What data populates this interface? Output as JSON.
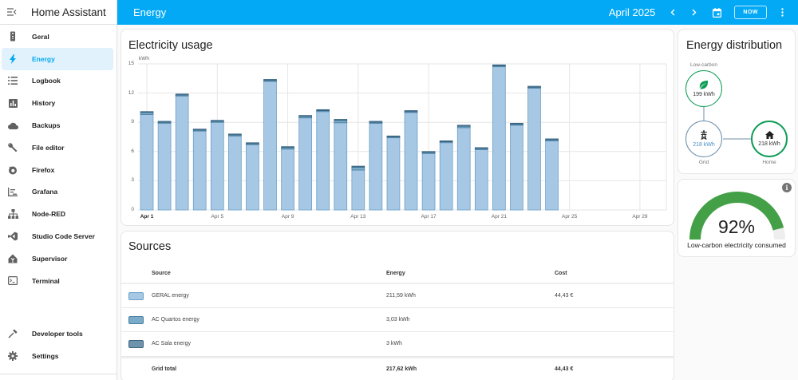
{
  "sidebar": {
    "title": "Home Assistant",
    "menu_icon": "menu-open-icon",
    "items": [
      {
        "label": "Geral",
        "icon": "remote-icon",
        "active": false
      },
      {
        "label": "Energy",
        "icon": "lightning-bolt-icon",
        "active": true
      },
      {
        "label": "Logbook",
        "icon": "logbook-list-icon",
        "active": false
      },
      {
        "label": "History",
        "icon": "chart-box-icon",
        "active": false
      },
      {
        "label": "Backups",
        "icon": "cloud-icon",
        "active": false
      },
      {
        "label": "File editor",
        "icon": "wrench-icon",
        "active": false
      },
      {
        "label": "Firefox",
        "icon": "firefox-icon",
        "active": false
      },
      {
        "label": "Grafana",
        "icon": "grafana-chart-icon",
        "active": false
      },
      {
        "label": "Node-RED",
        "icon": "sitemap-icon",
        "active": false
      },
      {
        "label": "Studio Code Server",
        "icon": "vscode-icon",
        "active": false
      },
      {
        "label": "Supervisor",
        "icon": "home-assistant-icon",
        "active": false
      },
      {
        "label": "Terminal",
        "icon": "console-icon",
        "active": false
      }
    ],
    "bottom_items": [
      {
        "label": "Developer tools",
        "icon": "hammer-icon"
      },
      {
        "label": "Settings",
        "icon": "cog-icon"
      }
    ]
  },
  "topbar": {
    "title": "Energy",
    "period": "April 2025",
    "now_label": "NOW",
    "background": "#03a9f4"
  },
  "usage": {
    "title": "Electricity usage",
    "unit": "kWh"
  },
  "chart_data": {
    "type": "bar",
    "title": "Electricity usage",
    "xlabel": "",
    "ylabel": "kWh",
    "ylim": [
      0,
      15
    ],
    "yticks": [
      0,
      3,
      6,
      9,
      12,
      15
    ],
    "grid": true,
    "stacked": true,
    "x_tick_labels": [
      "Apr 1",
      "Apr 5",
      "Apr 9",
      "Apr 13",
      "Apr 17",
      "Apr 21",
      "Apr 25",
      "Apr 29"
    ],
    "categories": [
      "Apr 1",
      "Apr 2",
      "Apr 3",
      "Apr 4",
      "Apr 5",
      "Apr 6",
      "Apr 7",
      "Apr 8",
      "Apr 9",
      "Apr 10",
      "Apr 11",
      "Apr 12",
      "Apr 13",
      "Apr 14",
      "Apr 15",
      "Apr 16",
      "Apr 17",
      "Apr 18",
      "Apr 19",
      "Apr 20",
      "Apr 21",
      "Apr 22",
      "Apr 23",
      "Apr 24",
      "Apr 25",
      "Apr 26",
      "Apr 27",
      "Apr 28",
      "Apr 29",
      "Apr 30"
    ],
    "series": [
      {
        "name": "GERAL energy",
        "color": "#a6c8e4",
        "border": "#6d9fc7",
        "values": [
          9.8,
          8.95,
          11.75,
          8.15,
          9.0,
          7.6,
          6.75,
          13.2,
          6.25,
          9.45,
          10.1,
          8.95,
          4.1,
          8.9,
          7.45,
          10.0,
          5.8,
          6.95,
          8.45,
          6.2,
          14.7,
          8.7,
          12.55,
          7.1
        ]
      },
      {
        "name": "AC Quartos energy",
        "color": "#7aabc9",
        "border": "#4b7ea0",
        "values": [
          0.2,
          0.05,
          0.05,
          0.05,
          0.1,
          0.1,
          0.05,
          0.1,
          0.15,
          0.2,
          0.1,
          0.25,
          0.3,
          0.1,
          0.05,
          0.1,
          0.1,
          0.05,
          0.15,
          0.1,
          0.1,
          0.1,
          0.05,
          0.1
        ]
      },
      {
        "name": "AC Sala energy",
        "color": "#5b87a3",
        "border": "#2f5d7c",
        "values": [
          0.1,
          0.1,
          0.1,
          0.1,
          0.1,
          0.1,
          0.1,
          0.1,
          0.1,
          0.05,
          0.1,
          0.1,
          0.1,
          0.1,
          0.1,
          0.1,
          0.1,
          0.1,
          0.1,
          0.1,
          0.1,
          0.1,
          0.1,
          0.1
        ]
      }
    ],
    "totals": [
      10.1,
      9.1,
      11.9,
      8.3,
      9.2,
      7.8,
      6.9,
      13.4,
      6.5,
      9.7,
      10.3,
      9.3,
      4.5,
      9.1,
      7.6,
      10.2,
      6.0,
      7.1,
      8.7,
      6.4,
      14.9,
      8.9,
      12.7,
      7.3
    ]
  },
  "sources": {
    "title": "Sources",
    "headers": {
      "source": "Source",
      "energy": "Energy",
      "cost": "Cost"
    },
    "rows": [
      {
        "source": "GERAL energy",
        "energy": "211,59 kWh",
        "cost": "44,43 €",
        "color": "#a6c8e4",
        "border": "#6d9fc7"
      },
      {
        "source": "AC Quartos energy",
        "energy": "3,03 kWh",
        "cost": "",
        "color": "#7aabc9",
        "border": "#4b7ea0"
      },
      {
        "source": "AC Sala energy",
        "energy": "3 kWh",
        "cost": "",
        "color": "#6f93ab",
        "border": "#3f6682"
      }
    ],
    "total": {
      "source": "Grid total",
      "energy": "217,62 kWh",
      "cost": "44,43 €"
    }
  },
  "distribution": {
    "title": "Energy distribution",
    "low_carbon": {
      "label": "Low-carbon",
      "value": "199 kWh",
      "color": "#0f9d58"
    },
    "grid": {
      "label": "Grid",
      "value": "218 kWh",
      "color": "#488fc2"
    },
    "home": {
      "label": "Home",
      "value": "218 kWh",
      "color": "#0f9d58"
    }
  },
  "gauge": {
    "value": "92%",
    "percent": 92,
    "name": "Low-carbon electricity consumed",
    "color": "#43a047",
    "info_icon": "i"
  }
}
